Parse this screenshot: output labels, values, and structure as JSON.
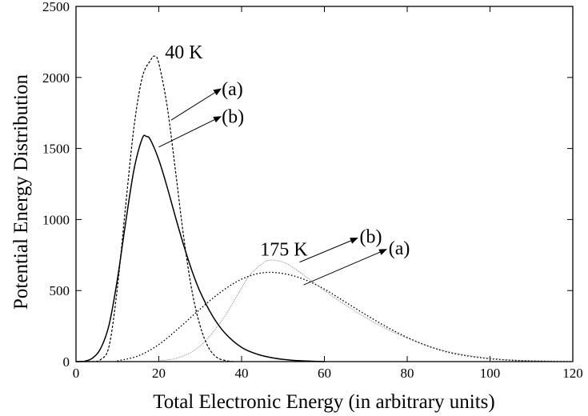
{
  "chart_data": {
    "type": "line",
    "title": "",
    "xlabel": "Total Electronic Energy (in arbitrary units)",
    "ylabel": "Potential Energy Distribution",
    "xlim": [
      0,
      120
    ],
    "ylim": [
      0,
      2500
    ],
    "xticks": [
      0,
      20,
      40,
      60,
      80,
      100,
      120
    ],
    "yticks": [
      0,
      500,
      1000,
      1500,
      2000,
      2500
    ],
    "grid": false,
    "legend": "none",
    "series": [
      {
        "style": "dashed",
        "x": [
          0,
          4,
          6,
          8,
          10,
          12,
          14,
          16,
          18,
          19,
          20,
          22,
          24,
          26,
          28,
          30,
          32,
          34,
          36,
          38
        ],
        "y": [
          0,
          0,
          15,
          110,
          520,
          1100,
          1650,
          2000,
          2120,
          2150,
          2100,
          1800,
          1350,
          880,
          500,
          250,
          100,
          30,
          8,
          0
        ]
      },
      {
        "style": "solid",
        "x": [
          0,
          2,
          4,
          6,
          8,
          10,
          12,
          14,
          16,
          17,
          18,
          20,
          22,
          24,
          26,
          28,
          30,
          33,
          36,
          40,
          44,
          48,
          52,
          56,
          60
        ],
        "y": [
          0,
          2,
          25,
          95,
          260,
          580,
          980,
          1350,
          1570,
          1585,
          1560,
          1420,
          1230,
          1020,
          820,
          640,
          490,
          320,
          200,
          100,
          50,
          24,
          10,
          4,
          0
        ]
      },
      {
        "style": "dotted",
        "x": [
          10,
          15,
          20,
          25,
          30,
          35,
          40,
          45,
          50,
          55,
          60,
          65,
          70,
          75,
          80,
          85,
          90,
          95,
          100,
          105,
          110,
          115,
          120
        ],
        "y": [
          5,
          40,
          120,
          240,
          370,
          490,
          580,
          625,
          620,
          580,
          510,
          420,
          330,
          245,
          170,
          110,
          65,
          38,
          20,
          10,
          5,
          2,
          0
        ]
      },
      {
        "style": "thin",
        "x": [
          20,
          25,
          30,
          35,
          38,
          40,
          42,
          45,
          47,
          50,
          52,
          55,
          60,
          65,
          70,
          75,
          80,
          85,
          90,
          95,
          100,
          105,
          110,
          115,
          120
        ],
        "y": [
          5,
          30,
          110,
          280,
          420,
          520,
          610,
          690,
          715,
          700,
          670,
          610,
          500,
          400,
          310,
          230,
          165,
          110,
          70,
          42,
          24,
          12,
          6,
          3,
          0
        ]
      }
    ],
    "annotations": [
      {
        "text": "40 K",
        "x": 21.5,
        "y": 2180
      },
      {
        "text": "(a)",
        "x": 35.2,
        "y": 1920,
        "arrow_from": [
          23,
          1700
        ],
        "arrow_to": [
          35,
          1920
        ]
      },
      {
        "text": "(b)",
        "x": 35.2,
        "y": 1725,
        "arrow_from": [
          20,
          1510
        ],
        "arrow_to": [
          35,
          1725
        ]
      },
      {
        "text": "175 K",
        "x": 44.5,
        "y": 790
      },
      {
        "text": "(b)",
        "x": 68.5,
        "y": 880,
        "arrow_from": [
          54,
          700
        ],
        "arrow_to": [
          68,
          870
        ]
      },
      {
        "text": "(a)",
        "x": 75.5,
        "y": 800,
        "arrow_from": [
          55,
          540
        ],
        "arrow_to": [
          75,
          790
        ]
      }
    ]
  }
}
